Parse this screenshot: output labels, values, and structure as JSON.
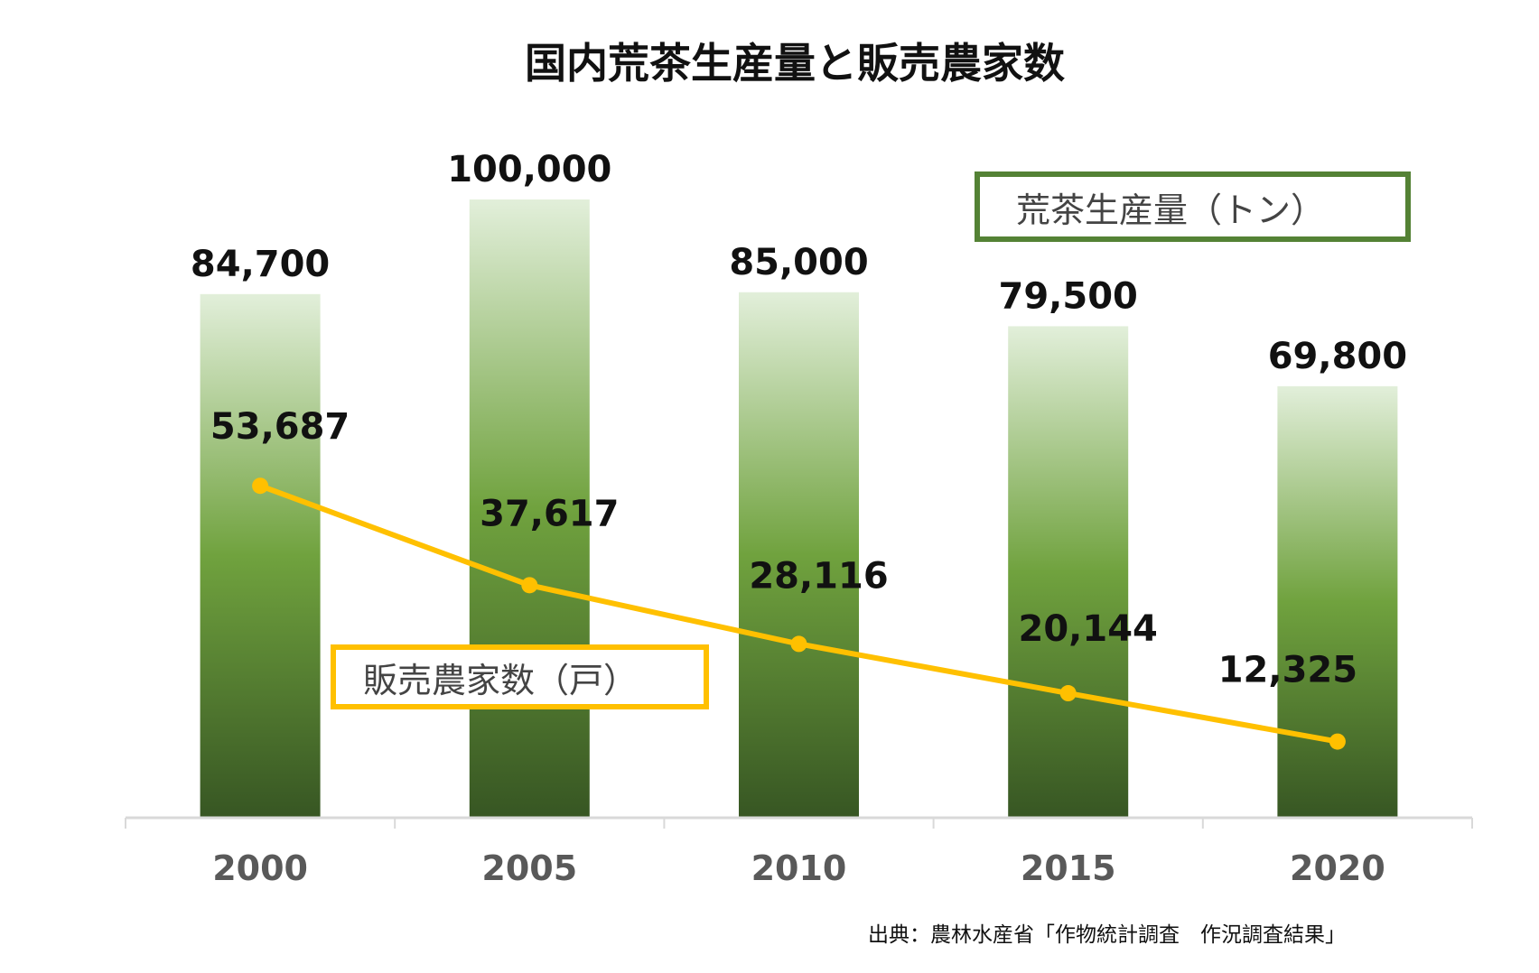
{
  "chart_data": {
    "type": "bar",
    "title": "国内荒茶生産量と販売農家数",
    "categories": [
      "2000",
      "2005",
      "2010",
      "2015",
      "2020"
    ],
    "series": [
      {
        "name": "荒茶生産量（トン）",
        "type": "bar",
        "values": [
          84700,
          100000,
          85000,
          79500,
          69800
        ],
        "labels": [
          "84,700",
          "100,000",
          "85,000",
          "79,500",
          "69,800"
        ]
      },
      {
        "name": "販売農家数（戸）",
        "type": "line",
        "values": [
          53687,
          37617,
          28116,
          20144,
          12325
        ],
        "labels": [
          "53,687",
          "37,617",
          "28,116",
          "20,144",
          "12,325"
        ]
      }
    ],
    "ylim": [
      0,
      100000
    ],
    "grid": false,
    "source": "出典：農林水産省「作物統計調査　作況調査結果」",
    "colors": {
      "bar_top": "#E2EFDA",
      "bar_mid": "#70A23E",
      "bar_bottom": "#375623",
      "line": "#FFC000",
      "axis": "#D9D9D9",
      "tick_label": "#595959"
    }
  }
}
